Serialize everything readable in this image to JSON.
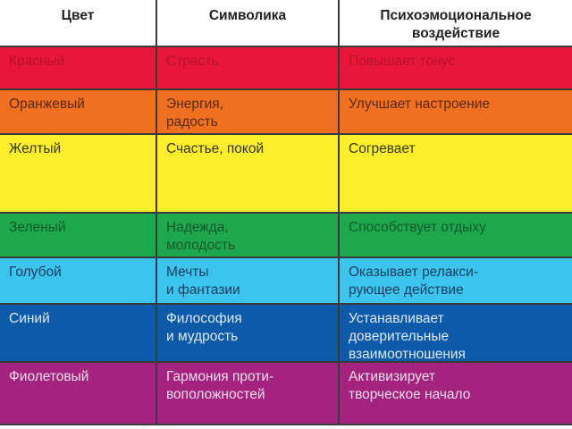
{
  "header": [
    "Цвет",
    "Символика",
    "Психоэмоциональное\nвоздействие"
  ],
  "rows": [
    {
      "cells": [
        "Красный",
        "Страсть",
        "Повышает тонус"
      ],
      "bg": "#e8173a",
      "fg": "#b8102e"
    },
    {
      "cells": [
        "Оранжевый",
        "Энергия,\nрадость",
        "Улучшает настроение"
      ],
      "bg": "#f07022",
      "fg": "#5a2a10"
    },
    {
      "cells": [
        "Желтый",
        "Счастье, покой",
        "Согревает"
      ],
      "bg": "#fbee2a",
      "fg": "#3a3520"
    },
    {
      "cells": [
        "Зеленый",
        "Надежда,\nмолодость",
        "Способствует отдыху"
      ],
      "bg": "#1fa74e",
      "fg": "#125a2a"
    },
    {
      "cells": [
        "Голубой",
        "Мечты\nи фантазии",
        "Оказывает релакси-\nрующее действие"
      ],
      "bg": "#3cc3ee",
      "fg": "#1a4060"
    },
    {
      "cells": [
        "Синий",
        "Философия\nи мудрость",
        "Устанавливает\nдоверительные\nвзаимоотношения"
      ],
      "bg": "#0c5aa8",
      "fg": "#dfe8f5"
    },
    {
      "cells": [
        "Фиолетовый",
        "Гармония проти-\nвоположностей",
        "Активизирует\nтворческое начало"
      ],
      "bg": "#a3237f",
      "fg": "#f1dceb"
    }
  ]
}
